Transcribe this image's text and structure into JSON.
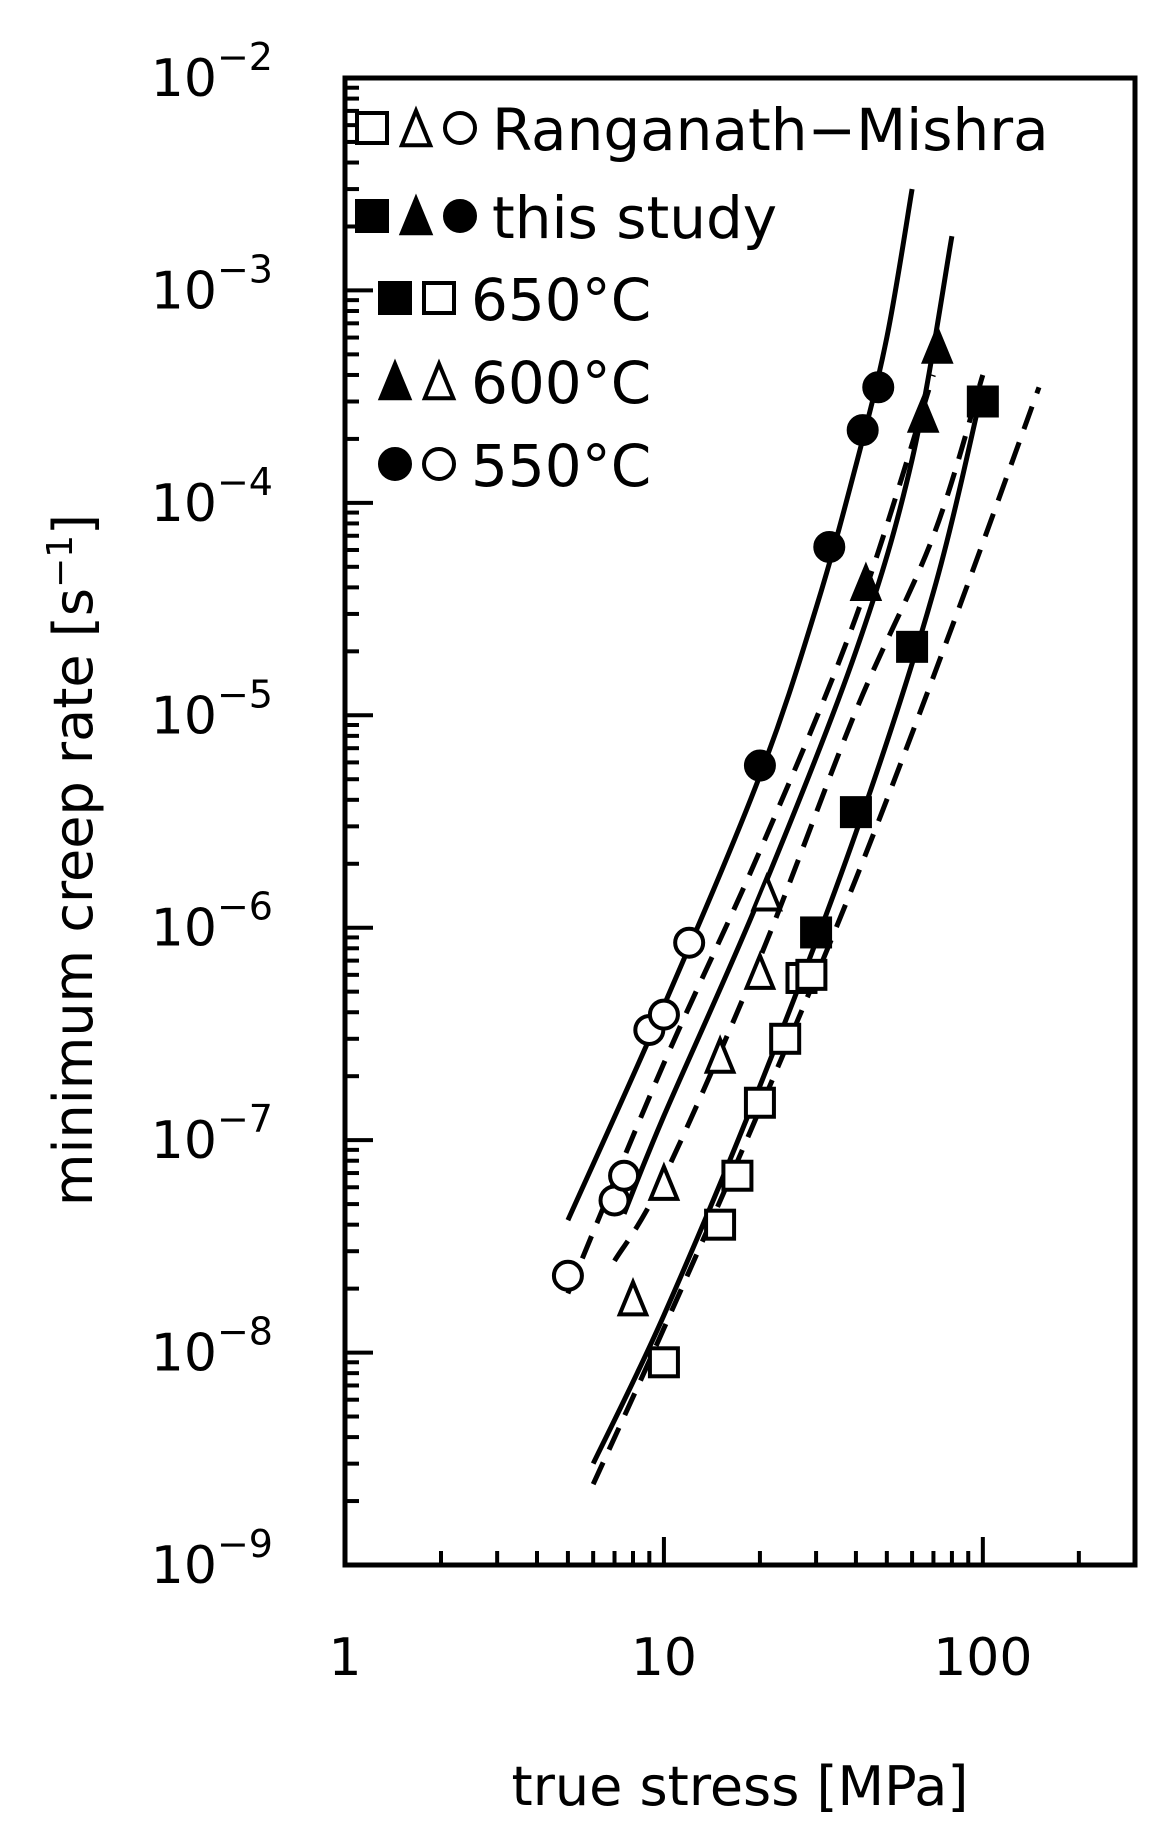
{
  "chart_data": {
    "type": "scatter",
    "title": "",
    "xlabel": "true stress [MPa]",
    "ylabel": "minimum creep rate [s",
    "ylabel_sup": "−1",
    "ylabel_close": "]",
    "xscale": "log",
    "yscale": "log",
    "xlim": [
      1,
      300
    ],
    "ylim": [
      1e-09,
      0.01
    ],
    "grid": false,
    "legend_placement": "top-left",
    "x_ticks": [
      {
        "value": 1,
        "label": "1"
      },
      {
        "value": 10,
        "label": "10"
      },
      {
        "value": 100,
        "label": "100"
      }
    ],
    "y_ticks": [
      {
        "value": 1e-09,
        "base": "10",
        "exp": "−9"
      },
      {
        "value": 1e-08,
        "base": "10",
        "exp": "−8"
      },
      {
        "value": 1e-07,
        "base": "10",
        "exp": "−7"
      },
      {
        "value": 1e-06,
        "base": "10",
        "exp": "−6"
      },
      {
        "value": 1e-05,
        "base": "10",
        "exp": "−5"
      },
      {
        "value": 0.0001,
        "base": "10",
        "exp": "−4"
      },
      {
        "value": 0.001,
        "base": "10",
        "exp": "−3"
      },
      {
        "value": 0.01,
        "base": "10",
        "exp": "−2"
      }
    ],
    "legend": [
      {
        "symbols": [
          "square-open",
          "triangle-open",
          "circle-open"
        ],
        "label": "Ranganath−Mishra"
      },
      {
        "symbols": [
          "square-filled",
          "triangle-filled",
          "circle-filled"
        ],
        "label": "this  study"
      },
      {
        "symbols": [
          "square-filled",
          "square-open"
        ],
        "label": "650°C"
      },
      {
        "symbols": [
          "triangle-filled",
          "triangle-open"
        ],
        "label": "600°C"
      },
      {
        "symbols": [
          "circle-filled",
          "circle-open"
        ],
        "label": "550°C"
      }
    ],
    "series": [
      {
        "marker": "square-filled",
        "points": [
          [
            30,
            9.5e-07
          ],
          [
            40,
            3.5e-06
          ],
          [
            60,
            2.1e-05
          ],
          [
            100,
            0.0003
          ]
        ]
      },
      {
        "marker": "square-open",
        "points": [
          [
            10,
            9e-09
          ],
          [
            15,
            4e-08
          ],
          [
            17,
            6.8e-08
          ],
          [
            20,
            1.5e-07
          ],
          [
            24,
            3e-07
          ],
          [
            27,
            5.8e-07
          ],
          [
            29,
            6e-07
          ]
        ]
      },
      {
        "marker": "triangle-filled",
        "points": [
          [
            43,
            4.2e-05
          ],
          [
            65,
            0.00026
          ],
          [
            72,
            0.00055
          ]
        ]
      },
      {
        "marker": "triangle-open",
        "points": [
          [
            8,
            1.8e-08
          ],
          [
            10,
            6.3e-08
          ],
          [
            15,
            2.5e-07
          ],
          [
            20,
            6.2e-07
          ],
          [
            21,
            1.45e-06
          ]
        ]
      },
      {
        "marker": "circle-filled",
        "points": [
          [
            20,
            5.8e-06
          ],
          [
            33,
            6.2e-05
          ],
          [
            42,
            0.00022
          ],
          [
            47,
            0.00035
          ]
        ]
      },
      {
        "marker": "circle-open",
        "points": [
          [
            5,
            2.3e-08
          ],
          [
            7,
            5.2e-08
          ],
          [
            7.5,
            6.8e-08
          ],
          [
            9,
            3.3e-07
          ],
          [
            10,
            3.9e-07
          ],
          [
            12,
            8.5e-07
          ]
        ]
      }
    ],
    "curves": [
      {
        "style": "solid",
        "points": [
          [
            5,
            4.2e-08
          ],
          [
            10,
            4.3e-07
          ],
          [
            20,
            5.2e-06
          ],
          [
            30,
            3.2e-05
          ],
          [
            40,
            0.00015
          ],
          [
            50,
            0.0006
          ],
          [
            60,
            0.003
          ]
        ]
      },
      {
        "style": "solid",
        "points": [
          [
            7.5,
            4.5e-08
          ],
          [
            10,
            1.3e-07
          ],
          [
            20,
            1.4e-06
          ],
          [
            40,
            2e-05
          ],
          [
            60,
            0.00016
          ],
          [
            80,
            0.0018
          ]
        ]
      },
      {
        "style": "solid",
        "points": [
          [
            6,
            3e-09
          ],
          [
            10,
            1.5e-08
          ],
          [
            20,
            1.8e-07
          ],
          [
            40,
            2.8e-06
          ],
          [
            70,
            3.8e-05
          ],
          [
            100,
            0.00035
          ]
        ]
      },
      {
        "style": "dashed",
        "points": [
          [
            5,
            1.9e-08
          ],
          [
            10,
            2.3e-07
          ],
          [
            20,
            2.3e-06
          ],
          [
            40,
            2.9e-05
          ],
          [
            70,
            0.0004
          ]
        ]
      },
      {
        "style": "dashed",
        "points": [
          [
            7,
            2.7e-08
          ],
          [
            10,
            6.7e-08
          ],
          [
            20,
            7.2e-07
          ],
          [
            40,
            1.05e-05
          ],
          [
            70,
            7e-05
          ],
          [
            100,
            0.0004
          ]
        ]
      },
      {
        "style": "dashed",
        "points": [
          [
            6,
            2.4e-09
          ],
          [
            10,
            1.3e-08
          ],
          [
            20,
            1.4e-07
          ],
          [
            40,
            1.7e-06
          ],
          [
            80,
            2.6e-05
          ],
          [
            150,
            0.00035
          ]
        ]
      }
    ]
  }
}
